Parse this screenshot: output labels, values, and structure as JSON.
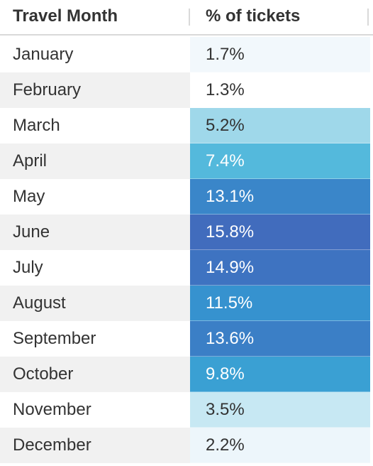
{
  "chart_data": {
    "type": "table",
    "columns": [
      "Travel Month",
      "% of tickets"
    ],
    "rows": [
      {
        "month": "January",
        "label": "1.7%",
        "value": 1.7
      },
      {
        "month": "February",
        "label": "1.3%",
        "value": 1.3
      },
      {
        "month": "March",
        "label": "5.2%",
        "value": 5.2
      },
      {
        "month": "April",
        "label": "7.4%",
        "value": 7.4
      },
      {
        "month": "May",
        "label": "13.1%",
        "value": 13.1
      },
      {
        "month": "June",
        "label": "15.8%",
        "value": 15.8
      },
      {
        "month": "July",
        "label": "14.9%",
        "value": 14.9
      },
      {
        "month": "August",
        "label": "11.5%",
        "value": 11.5
      },
      {
        "month": "September",
        "label": "13.6%",
        "value": 13.6
      },
      {
        "month": "October",
        "label": "9.8%",
        "value": 9.8
      },
      {
        "month": "November",
        "label": "3.5%",
        "value": 3.5
      },
      {
        "month": "December",
        "label": "2.2%",
        "value": 2.2
      }
    ],
    "colors": {
      "stripe_light": "#ffffff",
      "stripe_dark": "#f1f1f1",
      "text_dark": "#333333",
      "text_light": "#ffffff",
      "scale": {
        "1.3": "#ffffff",
        "1.7": "#f2f8fc",
        "2.2": "#edf6fb",
        "3.5": "#c7e8f3",
        "5.2": "#9fd8ea",
        "7.4": "#54b9dc",
        "9.8": "#3aa0d3",
        "11.5": "#3692cf",
        "13.1": "#3a86c9",
        "13.6": "#3b7fc6",
        "14.9": "#3e73c1",
        "15.8": "#416cbd"
      }
    }
  }
}
